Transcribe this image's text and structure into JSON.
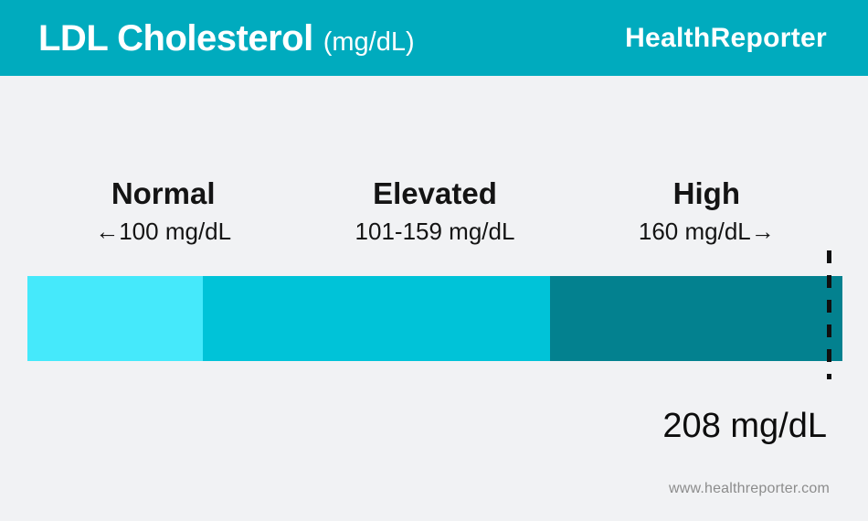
{
  "header": {
    "title": "LDL Cholesterol",
    "unit": "(mg/dL)",
    "brand": "HealthReporter",
    "bg_color": "#00abbe"
  },
  "chart_data": {
    "type": "bar",
    "orientation": "horizontal",
    "title": "LDL Cholesterol (mg/dL)",
    "ranges": [
      {
        "label": "Normal",
        "range_text": "←100 mg/dL",
        "min": 0,
        "max": 100,
        "color": "#45e9fb",
        "width": "21.5%"
      },
      {
        "label": "Elevated",
        "range_text": "101-159 mg/dL",
        "min": 101,
        "max": 159,
        "color": "#00c3d8",
        "width": "42.6%"
      },
      {
        "label": "High",
        "range_text": "160 mg/dL→",
        "min": 160,
        "max": null,
        "color": "#03818f",
        "width": "35.9%"
      }
    ],
    "marker": {
      "value": 208,
      "label": "208 mg/dL",
      "line_color": "#101010"
    }
  },
  "footer": {
    "url": "www.healthreporter.com"
  }
}
